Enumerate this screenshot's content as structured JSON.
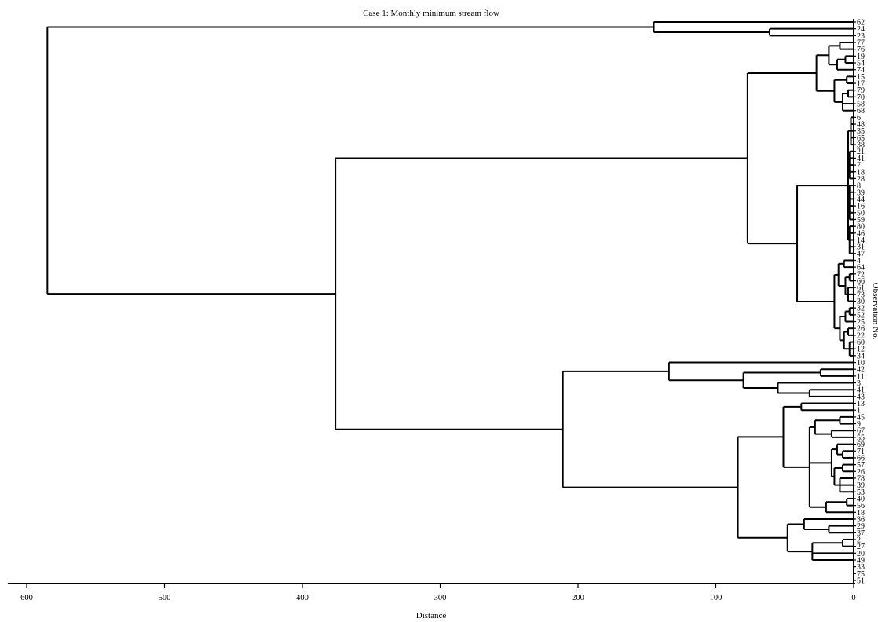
{
  "chart_data": {
    "type": "dendrogram",
    "title": "Case 1: Monthly minimum stream flow",
    "xlabel": "Distance",
    "ylabel": "Observation No.",
    "xlim": [
      0,
      600
    ],
    "xticks": [
      600,
      500,
      400,
      300,
      200,
      100,
      0
    ],
    "leaves": [
      "62",
      "24",
      "23",
      "77",
      "76",
      "19",
      "54",
      "74",
      "15",
      "17",
      "79",
      "70",
      "58",
      "68",
      "6",
      "48",
      "35",
      "65",
      "38",
      "21",
      "41",
      "7",
      "18",
      "28",
      "8",
      "39",
      "44",
      "16",
      "50",
      "59",
      "80",
      "46",
      "14",
      "31",
      "47",
      "4",
      "64",
      "72",
      "66",
      "61",
      "73",
      "30",
      "32",
      "52",
      "25",
      "26",
      "22",
      "60",
      "12",
      "34",
      "10",
      "42",
      "11",
      "3",
      "41",
      "43",
      "13",
      "1",
      "45",
      "9",
      "67",
      "55",
      "69",
      "71",
      "66",
      "57",
      "26",
      "78",
      "39",
      "53",
      "40",
      "56",
      "18",
      "36",
      "29",
      "37",
      "2",
      "27",
      "20",
      "49",
      "33",
      "75",
      "51"
    ],
    "merges": [
      {
        "left": "62",
        "right": "A2",
        "height": 145
      },
      {
        "left": "24",
        "right": "23",
        "height": 61
      },
      {
        "left": "B_top",
        "right": "B_bottom",
        "height": 376
      },
      {
        "left": "C_upper",
        "right": "C_lower",
        "height": 77
      },
      {
        "left": "D_mid",
        "right": "D_low",
        "height": 41
      },
      {
        "left": "E_upper",
        "right": "E_lower",
        "height": 211
      },
      {
        "left": "F_upper",
        "right": "F_lower",
        "height": 134
      },
      {
        "left": "G_upper",
        "right": "G_lower",
        "height": 84
      },
      {
        "left": "root_left",
        "right": "root_right",
        "height": 585
      }
    ]
  }
}
